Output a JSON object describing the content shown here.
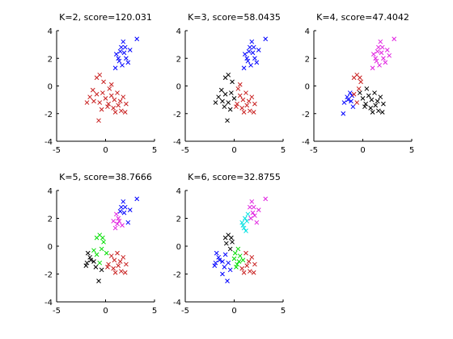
{
  "chart_data": [
    {
      "type": "scatter",
      "title": "K=2, score=120.031",
      "xlim": [
        -5,
        5
      ],
      "ylim": [
        -4,
        4
      ],
      "xticks": [
        "-5",
        "0",
        "5"
      ],
      "yticks": [
        "4",
        "2",
        "0",
        "-2",
        "-4"
      ],
      "marker": "x",
      "grid": false,
      "series": [
        {
          "color": "#0000ff",
          "points": [
            [
              1.3,
              2.0
            ],
            [
              1.6,
              2.8
            ],
            [
              1.9,
              2.4
            ],
            [
              2.1,
              2.0
            ],
            [
              1.4,
              1.8
            ],
            [
              1.0,
              1.3
            ],
            [
              2.5,
              2.6
            ],
            [
              1.1,
              2.3
            ],
            [
              1.7,
              1.5
            ],
            [
              2.3,
              1.7
            ],
            [
              1.8,
              3.2
            ],
            [
              3.2,
              3.4
            ],
            [
              2.0,
              2.8
            ],
            [
              1.5,
              2.5
            ]
          ]
        },
        {
          "color": "#c81e1e",
          "points": [
            [
              -1.6,
              -0.8
            ],
            [
              -1.2,
              -1.1
            ],
            [
              -0.9,
              -0.6
            ],
            [
              -0.6,
              -1.2
            ],
            [
              -0.3,
              -0.5
            ],
            [
              0.0,
              -0.9
            ],
            [
              0.3,
              -1.3
            ],
            [
              0.6,
              -0.7
            ],
            [
              0.9,
              -1.0
            ],
            [
              1.2,
              -0.5
            ],
            [
              1.5,
              -1.1
            ],
            [
              1.8,
              -0.8
            ],
            [
              2.1,
              -1.3
            ],
            [
              0.2,
              -1.5
            ],
            [
              -0.4,
              -1.7
            ],
            [
              0.8,
              -1.6
            ],
            [
              1.6,
              -1.8
            ],
            [
              -0.6,
              0.8
            ],
            [
              -0.9,
              0.6
            ],
            [
              -0.2,
              0.3
            ],
            [
              0.4,
              -0.2
            ],
            [
              -1.3,
              -0.3
            ],
            [
              1.0,
              -1.9
            ],
            [
              2.0,
              -1.9
            ],
            [
              -0.7,
              -2.5
            ],
            [
              1.3,
              -1.4
            ],
            [
              -1.9,
              -1.2
            ],
            [
              0.6,
              0.1
            ]
          ]
        }
      ]
    },
    {
      "type": "scatter",
      "title": "K=3, score=58.0435",
      "xlim": [
        -5,
        5
      ],
      "ylim": [
        -4,
        4
      ],
      "xticks": [
        "-5",
        "0",
        "5"
      ],
      "yticks": [
        "4",
        "2",
        "0",
        "-2",
        "-4"
      ],
      "marker": "x",
      "grid": false,
      "series": [
        {
          "color": "#0000ff",
          "points": [
            [
              1.3,
              2.0
            ],
            [
              1.6,
              2.8
            ],
            [
              1.9,
              2.4
            ],
            [
              2.1,
              2.0
            ],
            [
              1.4,
              1.8
            ],
            [
              1.0,
              1.3
            ],
            [
              2.5,
              2.6
            ],
            [
              1.1,
              2.3
            ],
            [
              1.7,
              1.5
            ],
            [
              2.3,
              1.7
            ],
            [
              1.8,
              3.2
            ],
            [
              3.2,
              3.4
            ],
            [
              2.0,
              2.8
            ],
            [
              1.5,
              2.5
            ]
          ]
        },
        {
          "color": "#000000",
          "points": [
            [
              -1.6,
              -0.8
            ],
            [
              -1.2,
              -1.1
            ],
            [
              -0.9,
              -0.6
            ],
            [
              -0.6,
              -1.2
            ],
            [
              -0.3,
              -0.5
            ],
            [
              0.0,
              -0.9
            ],
            [
              -0.4,
              -1.7
            ],
            [
              -1.3,
              -0.3
            ],
            [
              -0.7,
              -2.5
            ],
            [
              -1.9,
              -1.2
            ],
            [
              -0.6,
              0.8
            ],
            [
              -0.9,
              0.6
            ],
            [
              -0.2,
              0.3
            ],
            [
              -1.0,
              -1.5
            ]
          ]
        },
        {
          "color": "#c81e1e",
          "points": [
            [
              0.3,
              -1.3
            ],
            [
              0.6,
              -0.7
            ],
            [
              0.9,
              -1.0
            ],
            [
              1.2,
              -0.5
            ],
            [
              1.5,
              -1.1
            ],
            [
              1.8,
              -0.8
            ],
            [
              2.1,
              -1.3
            ],
            [
              0.2,
              -1.5
            ],
            [
              0.8,
              -1.6
            ],
            [
              1.6,
              -1.8
            ],
            [
              0.4,
              -0.2
            ],
            [
              1.0,
              -1.9
            ],
            [
              2.0,
              -1.9
            ],
            [
              1.3,
              -1.4
            ],
            [
              0.6,
              0.1
            ]
          ]
        }
      ]
    },
    {
      "type": "scatter",
      "title": "K=4, score=47.4042",
      "xlim": [
        -5,
        5
      ],
      "ylim": [
        -4,
        4
      ],
      "xticks": [
        "-5",
        "0",
        "5"
      ],
      "yticks": [
        "4",
        "2",
        "0",
        "-2",
        "-4"
      ],
      "marker": "x",
      "grid": false,
      "series": [
        {
          "color": "#e020e0",
          "points": [
            [
              1.3,
              2.0
            ],
            [
              1.6,
              2.8
            ],
            [
              1.9,
              2.4
            ],
            [
              2.1,
              2.0
            ],
            [
              1.4,
              1.8
            ],
            [
              1.0,
              1.3
            ],
            [
              2.5,
              2.6
            ],
            [
              1.1,
              2.3
            ],
            [
              1.7,
              1.5
            ],
            [
              2.3,
              1.7
            ],
            [
              1.8,
              3.2
            ],
            [
              3.2,
              3.4
            ],
            [
              2.0,
              2.8
            ],
            [
              1.5,
              2.5
            ],
            [
              2.7,
              2.2
            ]
          ]
        },
        {
          "color": "#0000ff",
          "points": [
            [
              -1.6,
              -0.8
            ],
            [
              -1.2,
              -1.1
            ],
            [
              -1.9,
              -1.2
            ],
            [
              -1.3,
              -0.5
            ],
            [
              -1.0,
              -1.5
            ],
            [
              -2.0,
              -2.0
            ],
            [
              -1.5,
              -1.0
            ],
            [
              -1.1,
              -0.7
            ]
          ]
        },
        {
          "color": "#000000",
          "points": [
            [
              0.3,
              -1.3
            ],
            [
              0.6,
              -0.7
            ],
            [
              0.9,
              -1.0
            ],
            [
              1.2,
              -0.5
            ],
            [
              1.5,
              -1.1
            ],
            [
              1.8,
              -0.8
            ],
            [
              2.1,
              -1.3
            ],
            [
              0.2,
              -1.5
            ],
            [
              0.8,
              -1.6
            ],
            [
              1.6,
              -1.8
            ],
            [
              0.4,
              -0.2
            ],
            [
              1.0,
              -1.9
            ],
            [
              2.0,
              -1.9
            ],
            [
              -0.3,
              -0.5
            ],
            [
              0.0,
              -0.9
            ],
            [
              1.3,
              -1.4
            ]
          ]
        },
        {
          "color": "#c81e1e",
          "points": [
            [
              -0.6,
              0.8
            ],
            [
              -0.9,
              0.6
            ],
            [
              -0.2,
              0.3
            ],
            [
              -0.9,
              -0.6
            ],
            [
              -0.6,
              -1.2
            ],
            [
              -0.4,
              -0.2
            ],
            [
              -0.3,
              0.6
            ]
          ]
        }
      ]
    },
    {
      "type": "scatter",
      "title": "K=5, score=38.7666",
      "xlim": [
        -5,
        5
      ],
      "ylim": [
        -4,
        4
      ],
      "xticks": [
        "-5",
        "0",
        "5"
      ],
      "yticks": [
        "4",
        "2",
        "0",
        "-2",
        "-4"
      ],
      "marker": "x",
      "grid": false,
      "series": [
        {
          "color": "#0000ff",
          "points": [
            [
              1.6,
              2.8
            ],
            [
              1.8,
              3.2
            ],
            [
              3.2,
              3.4
            ],
            [
              2.0,
              2.8
            ],
            [
              1.9,
              2.4
            ],
            [
              2.5,
              2.6
            ],
            [
              2.3,
              1.7
            ],
            [
              1.5,
              2.5
            ]
          ]
        },
        {
          "color": "#e020e0",
          "points": [
            [
              1.3,
              2.0
            ],
            [
              1.4,
              1.8
            ],
            [
              1.0,
              1.3
            ],
            [
              1.1,
              2.3
            ],
            [
              1.7,
              1.5
            ],
            [
              1.2,
              1.6
            ],
            [
              0.8,
              1.8
            ]
          ]
        },
        {
          "color": "#00dd00",
          "points": [
            [
              -0.6,
              0.8
            ],
            [
              -0.9,
              0.6
            ],
            [
              -0.2,
              0.3
            ],
            [
              -0.9,
              -0.6
            ],
            [
              -0.6,
              -1.2
            ],
            [
              -0.4,
              -0.2
            ],
            [
              -0.3,
              0.6
            ],
            [
              -1.2,
              -0.3
            ],
            [
              0.1,
              -0.5
            ]
          ]
        },
        {
          "color": "#000000",
          "points": [
            [
              -1.6,
              -0.8
            ],
            [
              -1.2,
              -1.1
            ],
            [
              -1.9,
              -1.2
            ],
            [
              -1.0,
              -1.5
            ],
            [
              -2.0,
              -1.4
            ],
            [
              -1.5,
              -1.0
            ],
            [
              -0.7,
              -2.5
            ],
            [
              -0.4,
              -1.7
            ],
            [
              -1.8,
              -0.5
            ]
          ]
        },
        {
          "color": "#c81e1e",
          "points": [
            [
              0.3,
              -1.3
            ],
            [
              0.6,
              -0.7
            ],
            [
              0.9,
              -1.0
            ],
            [
              1.2,
              -0.5
            ],
            [
              1.5,
              -1.1
            ],
            [
              1.8,
              -0.8
            ],
            [
              2.1,
              -1.3
            ],
            [
              0.2,
              -1.5
            ],
            [
              0.8,
              -1.6
            ],
            [
              1.6,
              -1.8
            ],
            [
              1.0,
              -1.9
            ],
            [
              2.0,
              -1.9
            ],
            [
              1.3,
              -1.4
            ]
          ]
        }
      ]
    },
    {
      "type": "scatter",
      "title": "K=6, score=32.8755",
      "xlim": [
        -5,
        5
      ],
      "ylim": [
        -4,
        4
      ],
      "xticks": [
        "-5",
        "0",
        "5"
      ],
      "yticks": [
        "4",
        "2",
        "0",
        "-2",
        "-4"
      ],
      "marker": "x",
      "grid": false,
      "series": [
        {
          "color": "#00e0e0",
          "points": [
            [
              0.9,
              1.5
            ],
            [
              1.1,
              2.0
            ],
            [
              1.3,
              1.8
            ],
            [
              1.0,
              1.3
            ],
            [
              1.4,
              2.3
            ],
            [
              0.8,
              1.7
            ],
            [
              1.2,
              1.1
            ]
          ]
        },
        {
          "color": "#e020e0",
          "points": [
            [
              1.6,
              2.8
            ],
            [
              1.8,
              3.2
            ],
            [
              3.2,
              3.4
            ],
            [
              2.0,
              2.8
            ],
            [
              1.9,
              2.4
            ],
            [
              2.5,
              2.6
            ],
            [
              2.3,
              1.7
            ],
            [
              1.7,
              2.0
            ],
            [
              2.1,
              2.2
            ]
          ]
        },
        {
          "color": "#000000",
          "points": [
            [
              -0.6,
              0.8
            ],
            [
              -0.9,
              0.6
            ],
            [
              -0.2,
              0.3
            ],
            [
              -0.4,
              -0.2
            ],
            [
              -0.3,
              0.6
            ],
            [
              -0.8,
              0.2
            ]
          ]
        },
        {
          "color": "#0000ff",
          "points": [
            [
              -1.6,
              -0.8
            ],
            [
              -1.2,
              -1.1
            ],
            [
              -1.9,
              -1.2
            ],
            [
              -1.0,
              -1.5
            ],
            [
              -2.0,
              -1.4
            ],
            [
              -1.5,
              -1.0
            ],
            [
              -0.7,
              -2.5
            ],
            [
              -0.4,
              -1.7
            ],
            [
              -1.8,
              -0.5
            ],
            [
              -0.9,
              -0.6
            ],
            [
              -0.6,
              -1.2
            ],
            [
              -1.2,
              -2.0
            ]
          ]
        },
        {
          "color": "#00dd00",
          "points": [
            [
              0.1,
              -0.5
            ],
            [
              0.3,
              -1.3
            ],
            [
              0.6,
              -0.7
            ],
            [
              0.2,
              -1.5
            ],
            [
              0.4,
              -0.2
            ],
            [
              0.9,
              -1.0
            ],
            [
              0.0,
              -0.9
            ],
            [
              0.5,
              -1.1
            ]
          ]
        },
        {
          "color": "#c81e1e",
          "points": [
            [
              1.2,
              -0.5
            ],
            [
              1.5,
              -1.1
            ],
            [
              1.8,
              -0.8
            ],
            [
              2.1,
              -1.3
            ],
            [
              0.8,
              -1.6
            ],
            [
              1.6,
              -1.8
            ],
            [
              1.0,
              -1.9
            ],
            [
              2.0,
              -1.9
            ],
            [
              1.3,
              -1.4
            ]
          ]
        }
      ]
    }
  ]
}
